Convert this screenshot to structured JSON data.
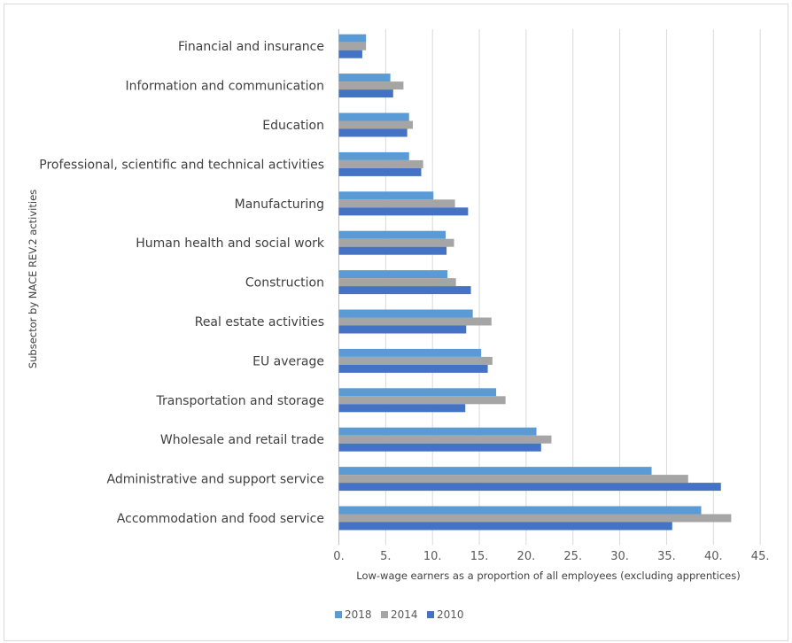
{
  "chart_data": {
    "type": "bar",
    "orientation": "horizontal",
    "categories": [
      "Financial and insurance",
      "Information and communication",
      "Education",
      "Professional, scientific and technical activities",
      "Manufacturing",
      "Human health and social work",
      "Construction",
      "Real estate activities",
      "EU average",
      "Transportation and storage",
      "Wholesale and retail trade",
      "Administrative and support service",
      "Accommodation and food service"
    ],
    "series": [
      {
        "name": "2018",
        "color": "#5b9bd5",
        "values": [
          2.9,
          5.5,
          7.5,
          7.5,
          10.1,
          11.4,
          11.6,
          14.3,
          15.2,
          16.8,
          21.1,
          33.4,
          38.7
        ]
      },
      {
        "name": "2014",
        "color": "#a5a5a5",
        "values": [
          2.9,
          6.9,
          7.9,
          9.0,
          12.4,
          12.3,
          12.5,
          16.3,
          16.4,
          17.8,
          22.7,
          37.3,
          41.9
        ]
      },
      {
        "name": "2010",
        "color": "#4472c4",
        "values": [
          2.5,
          5.8,
          7.3,
          8.8,
          13.8,
          11.5,
          14.1,
          13.6,
          15.9,
          13.5,
          21.6,
          40.8,
          35.6
        ]
      }
    ],
    "xlabel": "Low-wage earners as a proportion of all employees (excluding apprentices)",
    "ylabel": "Subsector by NACE REV.2  activities",
    "xlim": [
      0,
      45
    ],
    "xticks": [
      "0.",
      "5.",
      "10.",
      "15.",
      "20.",
      "25.",
      "30.",
      "35.",
      "40.",
      "45."
    ],
    "grid": true,
    "legend": "bottom-left"
  }
}
